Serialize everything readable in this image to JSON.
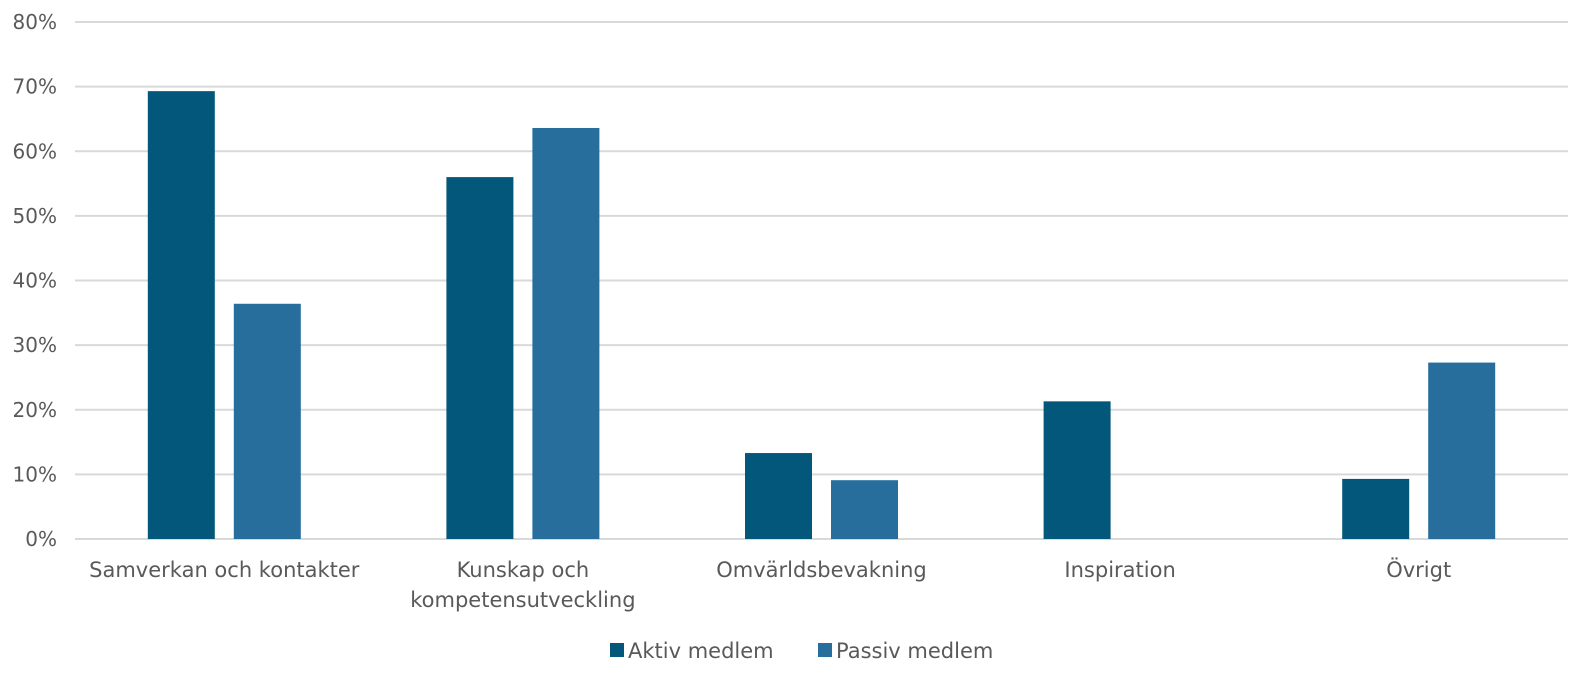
{
  "chart_data": {
    "type": "bar",
    "title": "",
    "xlabel": "",
    "ylabel": "",
    "categories": [
      [
        "Samverkan och kontakter"
      ],
      [
        "Kunskap och",
        "kompetensutveckling"
      ],
      [
        "Omvärldsbevakning"
      ],
      [
        "Inspiration"
      ],
      [
        "Övrigt"
      ]
    ],
    "series": [
      {
        "name": "Aktiv medlem",
        "color": "#03577A",
        "values": [
          69.3,
          56.0,
          13.3,
          21.3,
          9.3
        ]
      },
      {
        "name": "Passiv medlem",
        "color": "#276E9C",
        "values": [
          36.4,
          63.6,
          9.1,
          0,
          27.3
        ]
      }
    ],
    "ylim": [
      0,
      80
    ],
    "yticks": [
      0,
      10,
      20,
      30,
      40,
      50,
      60,
      70,
      80
    ],
    "ytick_format": "{v}%",
    "grid": true,
    "legend_position": "bottom"
  }
}
